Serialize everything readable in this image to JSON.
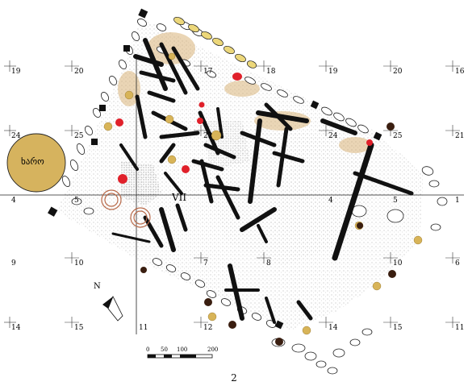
{
  "figure_number": "2",
  "feature_label": "VII",
  "pit_label": "ხარო",
  "north_label": "N",
  "scale": {
    "ticks": [
      "0",
      "50",
      "100",
      "200"
    ]
  },
  "grid_labels": {
    "row1": [
      "19",
      "20",
      "17",
      "18",
      "19",
      "20",
      "16"
    ],
    "row2": [
      "24",
      "25",
      "22",
      "24",
      "25",
      "21"
    ],
    "row3": [
      "4",
      "5",
      "4",
      "5",
      "1"
    ],
    "row4": [
      "9",
      "10",
      "7",
      "8",
      "10",
      "6"
    ],
    "row5": [
      "14",
      "15",
      "11",
      "12",
      "14",
      "15",
      "11"
    ]
  },
  "colors": {
    "timber": "#111111",
    "red_vessel": "#e0202a",
    "ochre_vessel": "#d8b458",
    "dark_vessel": "#3a1e10",
    "wall_stones": "#ffffff",
    "yellow_stones": "#ecd77a",
    "pit_fill": "#d6b35e",
    "burnt_area": "#c8a070"
  }
}
